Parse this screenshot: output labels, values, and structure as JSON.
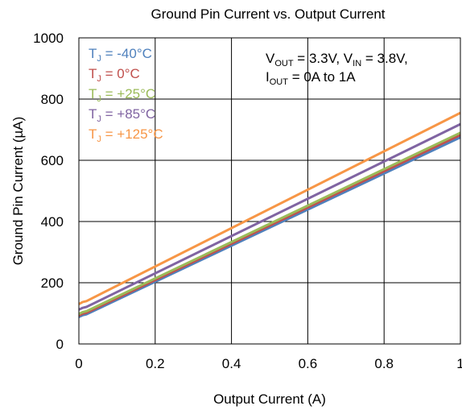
{
  "chart_data": {
    "type": "line",
    "title": "Ground Pin Current vs. Output Current",
    "xlabel": "Output Current (A)",
    "ylabel": "Ground Pin Current (µA)",
    "xlim": [
      0,
      1
    ],
    "ylim": [
      0,
      1000
    ],
    "xticks": [
      0,
      0.2,
      0.4,
      0.6,
      0.8,
      1
    ],
    "yticks": [
      0,
      200,
      400,
      600,
      800,
      1000
    ],
    "xtick_labels": [
      "0",
      "0.2",
      "0.4",
      "0.6",
      "0.8",
      "1"
    ],
    "ytick_labels": [
      "0",
      "200",
      "400",
      "600",
      "800",
      "1000"
    ],
    "grid": true,
    "legend_position": "top-left",
    "annotation": {
      "line1": {
        "v_out_prefix": "V",
        "v_out_sub": "OUT",
        "v_out_rest": " = 3.3V, V",
        "v_in_sub": "IN",
        "v_in_rest": " = 3.8V,"
      },
      "line2": {
        "i_out_prefix": "I",
        "i_out_sub": "OUT",
        "i_out_rest": " = 0A to 1A"
      }
    },
    "series": [
      {
        "label_prefix": "T",
        "label_sub": "J",
        "label_rest": " = -40°C",
        "color": "#4f81bd",
        "x": [
          0,
          0.01,
          0.02,
          1
        ],
        "y": [
          88,
          94,
          97,
          675
        ]
      },
      {
        "label_prefix": "T",
        "label_sub": "J",
        "label_rest": " = 0°C",
        "color": "#c0504d",
        "x": [
          0,
          0.01,
          0.02,
          1
        ],
        "y": [
          93,
          99,
          102,
          683
        ]
      },
      {
        "label_prefix": "T",
        "label_sub": "J",
        "label_rest": " = +25°C",
        "color": "#9bbb59",
        "x": [
          0,
          0.01,
          0.02,
          1
        ],
        "y": [
          98,
          104,
          107,
          690
        ]
      },
      {
        "label_prefix": "T",
        "label_sub": "J",
        "label_rest": " = +85°C",
        "color": "#8064a2",
        "x": [
          0,
          0.01,
          0.02,
          1
        ],
        "y": [
          112,
          118,
          121,
          718
        ]
      },
      {
        "label_prefix": "T",
        "label_sub": "J",
        "label_rest": " = +125°C",
        "color": "#f79646",
        "x": [
          0,
          0.01,
          0.02,
          1
        ],
        "y": [
          130,
          137,
          140,
          755
        ]
      }
    ]
  }
}
